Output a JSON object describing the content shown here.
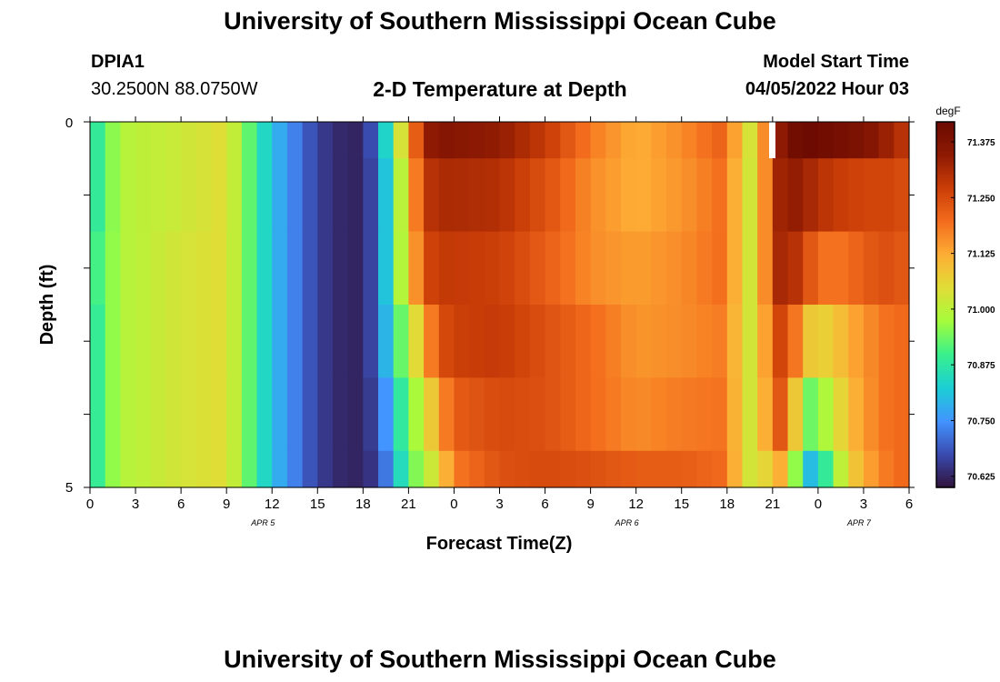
{
  "page": {
    "title": "University of Southern Mississippi Ocean Cube",
    "footer_title": "University of Southern Mississippi Ocean Cube",
    "station": "DPIA1",
    "coords": "30.2500N  88.0750W",
    "plot_title": "2-D Temperature at Depth",
    "model_start_label": "Model Start Time",
    "model_start_value": "04/05/2022 Hour 03"
  },
  "chart_data": {
    "type": "heatmap",
    "title": "2-D Temperature at Depth",
    "xlabel": "Forecast Time(Z)",
    "ylabel": "Depth (ft)",
    "ylim": [
      0,
      5
    ],
    "y_tick_labels": [
      "0",
      "5"
    ],
    "x_tick_labels": [
      "0",
      "3",
      "6",
      "9",
      "12",
      "15",
      "18",
      "21",
      "0",
      "3",
      "6",
      "9",
      "12",
      "15",
      "18",
      "21",
      "0",
      "3",
      "6"
    ],
    "date_labels": [
      {
        "text": "APR 5",
        "tick_index": 3.8
      },
      {
        "text": "APR 6",
        "tick_index": 11.8
      },
      {
        "text": "APR 7",
        "tick_index": 16.9
      }
    ],
    "x_hours_total": 54,
    "depth_rows": 5,
    "colorbar": {
      "unit": "degF",
      "min": 70.6,
      "max": 71.42,
      "ticks": [
        "71.375",
        "71.250",
        "71.125",
        "71.000",
        "70.875",
        "70.750",
        "70.625"
      ],
      "colors": [
        "#30123b",
        "#3a4bb0",
        "#4294ff",
        "#1bcfd4",
        "#39f08c",
        "#a4fc3b",
        "#e1dd37",
        "#fdae35",
        "#f36c1d",
        "#cb3e08",
        "#8e1a03",
        "#6b0a02"
      ]
    },
    "column_knots": [
      0,
      1,
      2,
      3,
      6,
      9,
      12,
      15,
      17,
      18,
      19,
      20,
      21,
      22,
      23,
      24,
      27,
      30,
      33,
      36,
      39,
      42,
      43,
      44,
      45,
      46,
      47,
      48,
      49,
      50,
      51,
      52,
      53,
      54
    ],
    "values": [
      [
        70.85,
        70.92,
        70.99,
        71.0,
        71.02,
        71.05,
        70.8,
        70.66,
        70.62,
        70.63,
        70.72,
        70.95,
        71.12,
        71.32,
        71.37,
        71.36,
        71.34,
        71.28,
        71.18,
        71.12,
        71.16,
        71.22,
        71.05,
        71.02,
        71.3,
        71.39,
        71.42,
        71.41,
        71.4,
        71.39,
        71.38,
        71.35,
        71.31,
        71.28
      ],
      [
        70.85,
        70.92,
        70.99,
        71.0,
        71.02,
        71.05,
        70.8,
        70.66,
        70.62,
        70.63,
        70.7,
        70.92,
        71.08,
        71.28,
        71.31,
        71.31,
        71.3,
        71.24,
        71.16,
        71.12,
        71.15,
        71.2,
        71.04,
        71.02,
        71.3,
        71.35,
        71.33,
        71.3,
        71.28,
        71.27,
        71.26,
        71.26,
        71.26,
        71.24
      ],
      [
        70.88,
        70.93,
        70.99,
        71.0,
        71.03,
        71.05,
        70.8,
        70.66,
        70.62,
        70.63,
        70.7,
        70.92,
        71.06,
        71.25,
        71.28,
        71.28,
        71.27,
        71.22,
        71.16,
        71.14,
        71.16,
        71.2,
        71.04,
        71.02,
        71.3,
        71.33,
        71.26,
        71.2,
        71.18,
        71.2,
        71.22,
        71.24,
        71.24,
        71.22
      ],
      [
        70.85,
        70.93,
        70.99,
        71.0,
        71.03,
        71.05,
        70.8,
        70.66,
        70.62,
        70.63,
        70.7,
        70.88,
        70.98,
        71.12,
        71.24,
        71.27,
        71.28,
        71.24,
        71.2,
        71.15,
        71.16,
        71.18,
        71.04,
        71.02,
        71.25,
        71.27,
        71.1,
        71.06,
        71.08,
        71.12,
        71.15,
        71.18,
        71.2,
        71.2
      ],
      [
        70.85,
        70.93,
        70.99,
        71.0,
        71.03,
        71.05,
        70.8,
        70.66,
        70.62,
        70.63,
        70.68,
        70.82,
        70.94,
        71.02,
        71.14,
        71.22,
        71.25,
        71.24,
        71.2,
        71.16,
        71.18,
        71.19,
        71.04,
        71.02,
        71.22,
        71.24,
        70.92,
        70.95,
        71.02,
        71.1,
        71.14,
        71.18,
        71.2,
        71.2
      ],
      [
        70.85,
        70.93,
        70.99,
        71.0,
        71.03,
        71.05,
        70.8,
        70.66,
        70.62,
        70.63,
        70.66,
        70.78,
        70.92,
        70.98,
        71.06,
        71.18,
        71.24,
        71.25,
        71.24,
        71.22,
        71.22,
        71.2,
        71.04,
        71.02,
        71.1,
        71.14,
        70.78,
        70.82,
        70.95,
        71.06,
        71.12,
        71.16,
        71.2,
        71.2
      ]
    ]
  }
}
